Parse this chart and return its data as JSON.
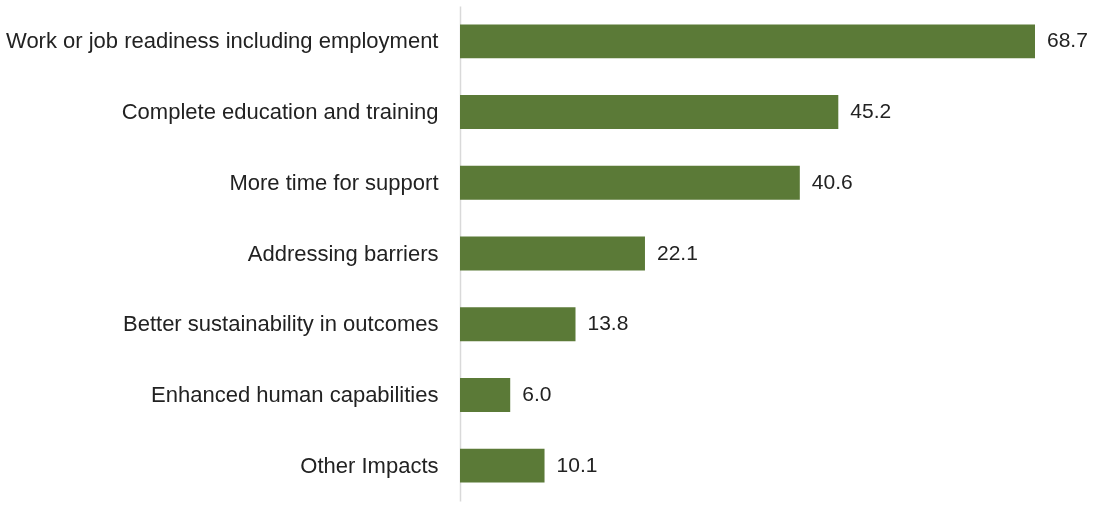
{
  "chart_data": {
    "type": "bar",
    "orientation": "horizontal",
    "categories": [
      "Work or job readiness including employment",
      "Complete education and training",
      "More time for support",
      "Addressing barriers",
      "Better sustainability in outcomes",
      "Enhanced human capabilities",
      "Other Impacts"
    ],
    "values": [
      68.7,
      45.2,
      40.6,
      22.1,
      13.8,
      6.0,
      10.1
    ],
    "value_labels": [
      "68.7",
      "45.2",
      "40.6",
      "22.1",
      "13.8",
      "6.0",
      "10.1"
    ],
    "color": "#5b7a37"
  }
}
